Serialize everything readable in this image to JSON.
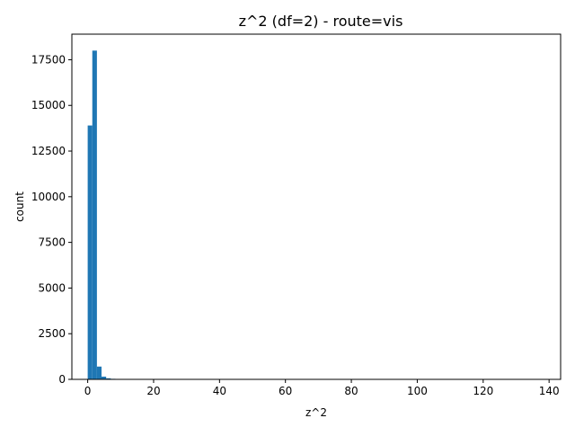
{
  "chart_data": {
    "type": "bar",
    "title": "z^2 (df=2) - route=vis",
    "xlabel": "z^2",
    "ylabel": "count",
    "xlim": [
      -4.8,
      143.5
    ],
    "ylim": [
      0,
      18900
    ],
    "x_ticks": [
      0,
      20,
      40,
      60,
      80,
      100,
      120,
      140
    ],
    "x_tick_labels": [
      "0",
      "20",
      "40",
      "60",
      "80",
      "100",
      "120",
      "140"
    ],
    "y_ticks": [
      0,
      2500,
      5000,
      7500,
      10000,
      12500,
      15000,
      17500
    ],
    "y_tick_labels": [
      "0",
      "2500",
      "5000",
      "7500",
      "10000",
      "12500",
      "15000",
      "17500"
    ],
    "bin_width": 1.4,
    "bins": [
      {
        "x0": 0.0,
        "count": 13900
      },
      {
        "x0": 1.4,
        "count": 18000
      },
      {
        "x0": 2.8,
        "count": 700
      },
      {
        "x0": 4.2,
        "count": 150
      },
      {
        "x0": 5.6,
        "count": 60
      },
      {
        "x0": 7.0,
        "count": 30
      },
      {
        "x0": 8.4,
        "count": 15
      }
    ],
    "bar_color": "#1f77b4",
    "grid": false,
    "legend": "none"
  }
}
